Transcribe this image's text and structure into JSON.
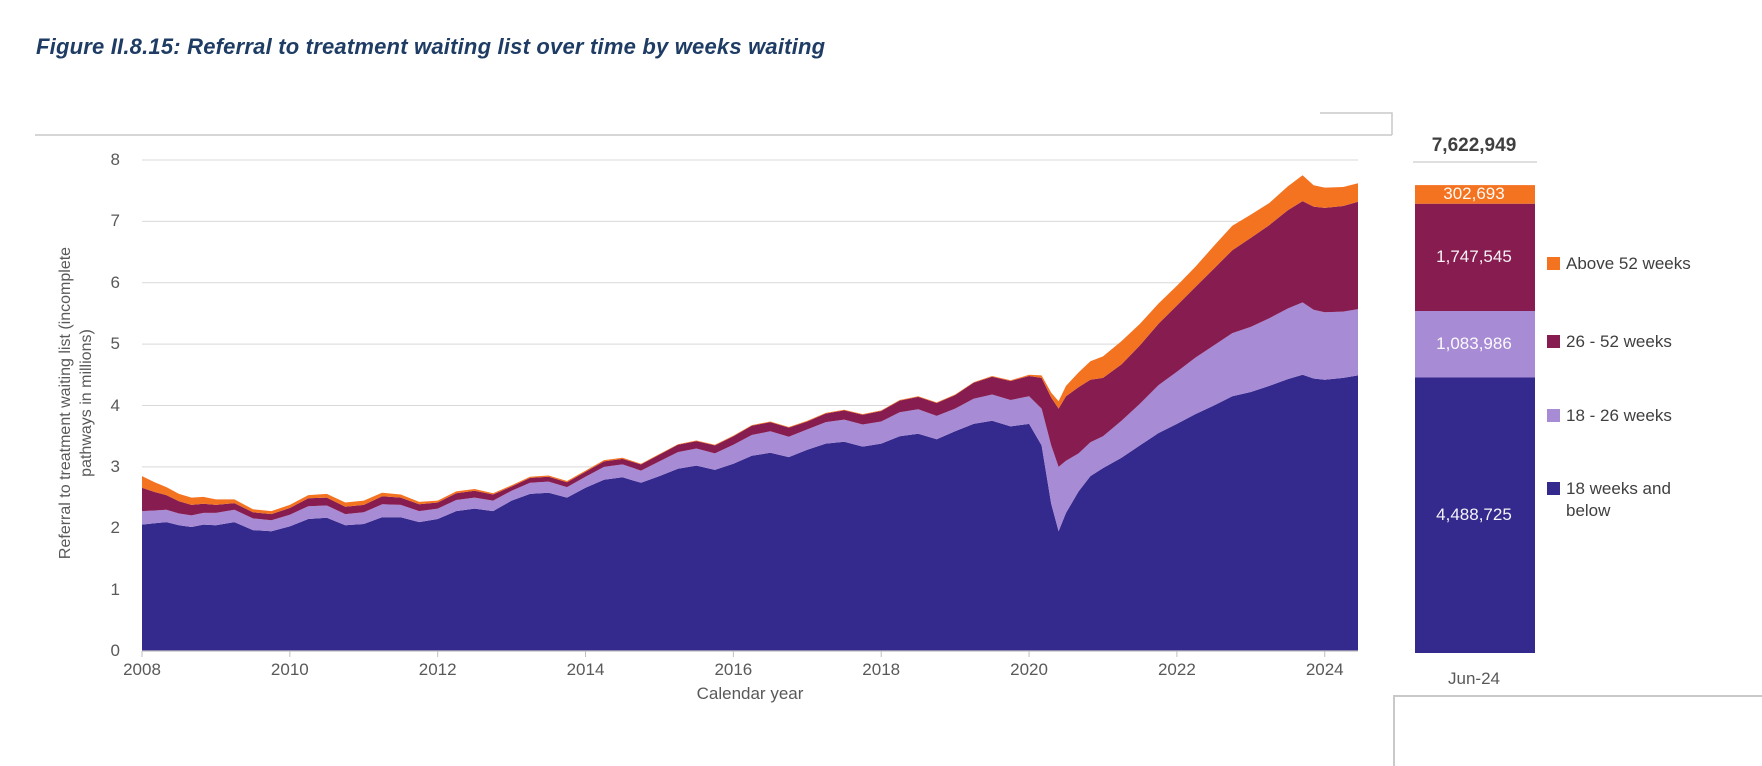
{
  "title": "Figure II.8.15: Referral to treatment waiting list over time by weeks waiting",
  "chart_data": {
    "type": "area",
    "stacked": true,
    "xlabel": "Calendar year",
    "ylabel": "Referral to treatment waiting list (incomplete pathways in millions)",
    "ylabel_line1": "Referral to treatment waiting list (incomplete",
    "ylabel_line2": "pathways in millions)",
    "xlim": [
      2008,
      2024.45
    ],
    "ylim": [
      0,
      8
    ],
    "x_ticks": [
      "2008",
      "2010",
      "2012",
      "2014",
      "2016",
      "2018",
      "2020",
      "2022",
      "2024"
    ],
    "x_tick_years": [
      2008,
      2010,
      2012,
      2014,
      2016,
      2018,
      2020,
      2022,
      2024
    ],
    "y_ticks": [
      "0",
      "1",
      "2",
      "3",
      "4",
      "5",
      "6",
      "7",
      "8"
    ],
    "y_tick_values": [
      0,
      1,
      2,
      3,
      4,
      5,
      6,
      7,
      8
    ],
    "grid": true,
    "gridline_color": "#D9D9D9",
    "axis_line_color": "#BFBFBF",
    "legend_position": "right",
    "x": [
      2008.0,
      2008.17,
      2008.33,
      2008.5,
      2008.67,
      2008.83,
      2009.0,
      2009.25,
      2009.5,
      2009.75,
      2010.0,
      2010.25,
      2010.5,
      2010.75,
      2011.0,
      2011.25,
      2011.5,
      2011.75,
      2012.0,
      2012.25,
      2012.5,
      2012.75,
      2013.0,
      2013.25,
      2013.5,
      2013.75,
      2014.0,
      2014.25,
      2014.5,
      2014.75,
      2015.0,
      2015.25,
      2015.5,
      2015.75,
      2016.0,
      2016.25,
      2016.5,
      2016.75,
      2017.0,
      2017.25,
      2017.5,
      2017.75,
      2018.0,
      2018.25,
      2018.5,
      2018.75,
      2019.0,
      2019.25,
      2019.5,
      2019.75,
      2020.0,
      2020.17,
      2020.3,
      2020.4,
      2020.5,
      2020.67,
      2020.83,
      2021.0,
      2021.25,
      2021.5,
      2021.75,
      2022.0,
      2022.25,
      2022.5,
      2022.75,
      2023.0,
      2023.25,
      2023.5,
      2023.7,
      2023.85,
      2024.0,
      2024.25,
      2024.45
    ],
    "series": [
      {
        "name": "18 weeks and below",
        "color": "#34298C",
        "values": [
          2.06,
          2.08,
          2.1,
          2.05,
          2.02,
          2.06,
          2.05,
          2.1,
          1.97,
          1.95,
          2.03,
          2.15,
          2.17,
          2.05,
          2.07,
          2.18,
          2.18,
          2.1,
          2.15,
          2.28,
          2.32,
          2.28,
          2.45,
          2.56,
          2.58,
          2.5,
          2.66,
          2.79,
          2.83,
          2.74,
          2.85,
          2.97,
          3.02,
          2.95,
          3.05,
          3.18,
          3.23,
          3.16,
          3.28,
          3.38,
          3.41,
          3.33,
          3.38,
          3.5,
          3.54,
          3.45,
          3.58,
          3.7,
          3.75,
          3.66,
          3.7,
          3.35,
          2.4,
          1.95,
          2.25,
          2.6,
          2.85,
          2.98,
          3.15,
          3.35,
          3.55,
          3.7,
          3.86,
          4.0,
          4.15,
          4.22,
          4.32,
          4.43,
          4.5,
          4.44,
          4.42,
          4.45,
          4.49
        ]
      },
      {
        "name": "18 - 26 weeks",
        "color": "#A78BD5",
        "values": [
          0.22,
          0.21,
          0.2,
          0.19,
          0.19,
          0.19,
          0.2,
          0.2,
          0.19,
          0.18,
          0.19,
          0.21,
          0.2,
          0.18,
          0.19,
          0.21,
          0.2,
          0.18,
          0.17,
          0.18,
          0.18,
          0.17,
          0.16,
          0.18,
          0.18,
          0.17,
          0.18,
          0.21,
          0.21,
          0.2,
          0.24,
          0.27,
          0.28,
          0.27,
          0.31,
          0.34,
          0.35,
          0.33,
          0.33,
          0.35,
          0.36,
          0.36,
          0.36,
          0.39,
          0.4,
          0.38,
          0.37,
          0.41,
          0.43,
          0.43,
          0.45,
          0.6,
          0.95,
          1.05,
          0.85,
          0.62,
          0.55,
          0.52,
          0.6,
          0.68,
          0.78,
          0.85,
          0.92,
          0.98,
          1.03,
          1.06,
          1.1,
          1.15,
          1.18,
          1.12,
          1.1,
          1.08,
          1.08
        ]
      },
      {
        "name": "26 - 52 weeks",
        "color": "#871C50",
        "values": [
          0.38,
          0.3,
          0.24,
          0.2,
          0.17,
          0.15,
          0.13,
          0.11,
          0.1,
          0.1,
          0.11,
          0.13,
          0.13,
          0.12,
          0.12,
          0.13,
          0.12,
          0.11,
          0.1,
          0.11,
          0.11,
          0.1,
          0.07,
          0.08,
          0.08,
          0.08,
          0.08,
          0.09,
          0.09,
          0.1,
          0.11,
          0.12,
          0.12,
          0.13,
          0.14,
          0.15,
          0.15,
          0.15,
          0.13,
          0.14,
          0.15,
          0.16,
          0.17,
          0.19,
          0.2,
          0.21,
          0.22,
          0.26,
          0.29,
          0.31,
          0.33,
          0.5,
          0.78,
          0.95,
          1.05,
          1.08,
          1.02,
          0.95,
          0.92,
          0.95,
          1.0,
          1.08,
          1.15,
          1.25,
          1.35,
          1.45,
          1.52,
          1.6,
          1.65,
          1.68,
          1.7,
          1.72,
          1.75
        ]
      },
      {
        "name": "Above 52 weeks",
        "color": "#F47320",
        "values": [
          0.19,
          0.16,
          0.13,
          0.12,
          0.12,
          0.11,
          0.09,
          0.06,
          0.05,
          0.05,
          0.05,
          0.05,
          0.06,
          0.07,
          0.07,
          0.06,
          0.05,
          0.04,
          0.03,
          0.03,
          0.03,
          0.02,
          0.02,
          0.02,
          0.02,
          0.02,
          0.02,
          0.02,
          0.02,
          0.01,
          0.01,
          0.01,
          0.01,
          0.01,
          0.01,
          0.01,
          0.01,
          0.01,
          0.01,
          0.01,
          0.01,
          0.01,
          0.01,
          0.01,
          0.01,
          0.01,
          0.01,
          0.01,
          0.01,
          0.01,
          0.02,
          0.04,
          0.08,
          0.12,
          0.17,
          0.24,
          0.3,
          0.35,
          0.38,
          0.35,
          0.33,
          0.32,
          0.33,
          0.37,
          0.4,
          0.38,
          0.36,
          0.39,
          0.42,
          0.35,
          0.33,
          0.31,
          0.3
        ]
      }
    ],
    "legend": [
      {
        "label": "Above 52 weeks",
        "color": "#F47320"
      },
      {
        "label": "26 - 52 weeks",
        "color": "#871C50"
      },
      {
        "label": "18 - 26 weeks",
        "color": "#A78BD5"
      },
      {
        "label": "18 weeks and below",
        "color": "#34298C"
      }
    ]
  },
  "summary_bar": {
    "x_label": "Jun-24",
    "total_label": "7,622,949",
    "total_value": 7622949,
    "segments_bottom_to_top": [
      {
        "name": "18 weeks and below",
        "label": "4,488,725",
        "value": 4488725,
        "color": "#34298C"
      },
      {
        "name": "18 - 26 weeks",
        "label": "1,083,986",
        "value": 1083986,
        "color": "#A78BD5"
      },
      {
        "name": "26 - 52 weeks",
        "label": "1,747,545",
        "value": 1747545,
        "color": "#871C50"
      },
      {
        "name": "Above 52 weeks",
        "label": "302,693",
        "value": 302693,
        "color": "#F47320"
      }
    ]
  }
}
